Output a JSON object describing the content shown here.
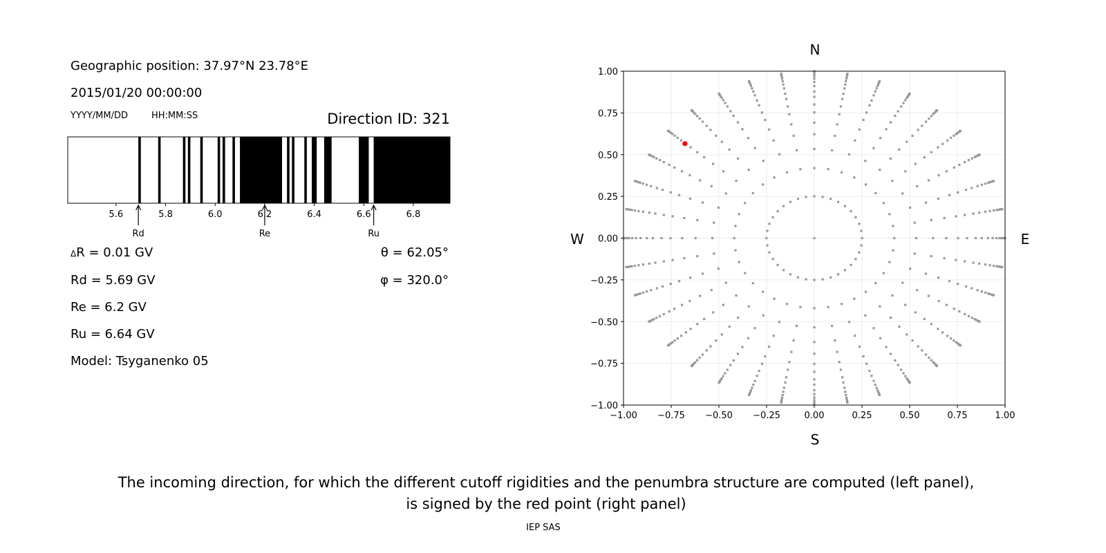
{
  "left_panel": {
    "geo_position": "Geographic position: 37.97°N 23.78°E",
    "datetime": "2015/01/20 00:00:00",
    "date_format": "YYYY/MM/DD",
    "time_format": "HH:MM:SS",
    "direction_id": "Direction ID: 321",
    "delta_r_symbol": "Δ",
    "delta_r": "R = 0.01 GV",
    "rd": "Rd = 5.69 GV",
    "re": "Re = 6.2 GV",
    "ru": "Ru = 6.64 GV",
    "model": "Model: Tsyganenko 05",
    "theta": "θ = 62.05°",
    "phi": "φ = 320.0°"
  },
  "chart_data": [
    {
      "type": "bar",
      "description_role": "penumbra",
      "xlim": [
        5.405,
        6.948
      ],
      "xticks": [
        5.6,
        5.8,
        6.0,
        6.2,
        6.4,
        6.6,
        6.8
      ],
      "xtick_labels": [
        "5.6",
        "5.8",
        "6.0",
        "6.2",
        "6.4",
        "6.6",
        "6.8"
      ],
      "forbidden_intervals": [
        [
          5.69,
          5.7
        ],
        [
          5.77,
          5.78
        ],
        [
          5.87,
          5.88
        ],
        [
          5.89,
          5.9
        ],
        [
          5.94,
          5.95
        ],
        [
          6.01,
          6.02
        ],
        [
          6.03,
          6.04
        ],
        [
          6.07,
          6.08
        ],
        [
          6.1,
          6.27
        ],
        [
          6.29,
          6.3
        ],
        [
          6.31,
          6.32
        ],
        [
          6.36,
          6.37
        ],
        [
          6.39,
          6.41
        ],
        [
          6.44,
          6.47
        ],
        [
          6.58,
          6.62
        ],
        [
          6.64,
          6.948
        ]
      ],
      "colors": {
        "allowed": "#ffffff",
        "forbidden": "#000000"
      },
      "markers": [
        {
          "label": "Rd",
          "value": 5.69
        },
        {
          "label": "Re",
          "value": 6.2
        },
        {
          "label": "Ru",
          "value": 6.64
        }
      ]
    },
    {
      "type": "scatter",
      "xlim": [
        -1.0,
        1.0
      ],
      "ylim": [
        -1.0,
        1.0
      ],
      "xticks": [
        "-1.00",
        "-0.75",
        "-0.50",
        "-0.25",
        "0.00",
        "0.25",
        "0.50",
        "0.75",
        "1.00"
      ],
      "yticks": [
        "-1.00",
        "-0.75",
        "-0.50",
        "-0.25",
        "0.00",
        "0.25",
        "0.50",
        "0.75",
        "1.00"
      ],
      "grid": true,
      "compass": {
        "north": "N",
        "south": "S",
        "west": "W",
        "east": "E"
      },
      "grid_points": {
        "azimuth_step_deg": 10,
        "zenith_angles_deg": [
          0,
          14.5,
          24.8,
          32.3,
          38.5,
          43.8,
          48.9,
          53.2,
          57.8,
          61.4,
          65.6,
          69.2,
          72.7,
          76.1,
          78.5,
          81.9,
          84.3,
          87,
          90
        ],
        "color": "#999999"
      },
      "selected_point": {
        "x": -0.678,
        "y": 0.566,
        "color": "#ff0000"
      }
    }
  ],
  "caption": {
    "line1": "The incoming direction, for which the different cutoff rigidities and the penumbra structure are computed (left panel),",
    "line2": "is signed by the red point (right panel)"
  },
  "footer": "IEP SAS"
}
